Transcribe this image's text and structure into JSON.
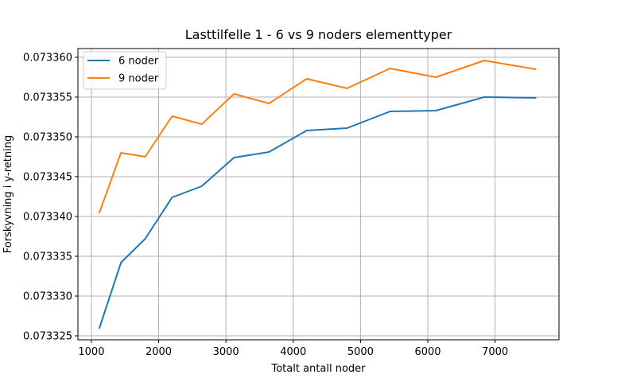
{
  "chart_data": {
    "type": "line",
    "title": "Lasttilfelle 1 - 6 vs 9 noders elementtyper",
    "xlabel": "Totalt antall noder",
    "ylabel": "Forskyvning i y-retning",
    "xlim": [
      800,
      7950
    ],
    "ylim": [
      0.0733245,
      0.0733611
    ],
    "xticks": [
      1000,
      2000,
      3000,
      4000,
      5000,
      6000,
      7000
    ],
    "xtick_labels": [
      "1000",
      "2000",
      "3000",
      "4000",
      "5000",
      "6000",
      "7000"
    ],
    "yticks": [
      0.073325,
      0.07333,
      0.073335,
      0.07334,
      0.073345,
      0.07335,
      0.073355,
      0.07336
    ],
    "ytick_labels": [
      "0.073325",
      "0.073330",
      "0.073335",
      "0.073340",
      "0.073345",
      "0.073350",
      "0.073355",
      "0.073360"
    ],
    "grid": true,
    "legend_position": "top-left",
    "series": [
      {
        "name": "6 noder",
        "color": "#1f77b4",
        "x": [
          1120,
          1440,
          1800,
          2200,
          2640,
          3120,
          3640,
          4200,
          4800,
          5440,
          6120,
          6840,
          7600
        ],
        "y": [
          0.073326,
          0.0733342,
          0.0733372,
          0.0733424,
          0.0733438,
          0.0733474,
          0.0733481,
          0.0733508,
          0.0733511,
          0.0733532,
          0.0733533,
          0.073355,
          0.0733549
        ]
      },
      {
        "name": "9 noder",
        "color": "#ff7f0e",
        "x": [
          1120,
          1440,
          1800,
          2200,
          2640,
          3120,
          3640,
          4200,
          4800,
          5440,
          6120,
          6840,
          7600
        ],
        "y": [
          0.0733405,
          0.073348,
          0.0733475,
          0.0733526,
          0.0733516,
          0.0733554,
          0.0733542,
          0.0733573,
          0.0733561,
          0.0733586,
          0.0733575,
          0.0733596,
          0.0733585
        ]
      }
    ]
  }
}
